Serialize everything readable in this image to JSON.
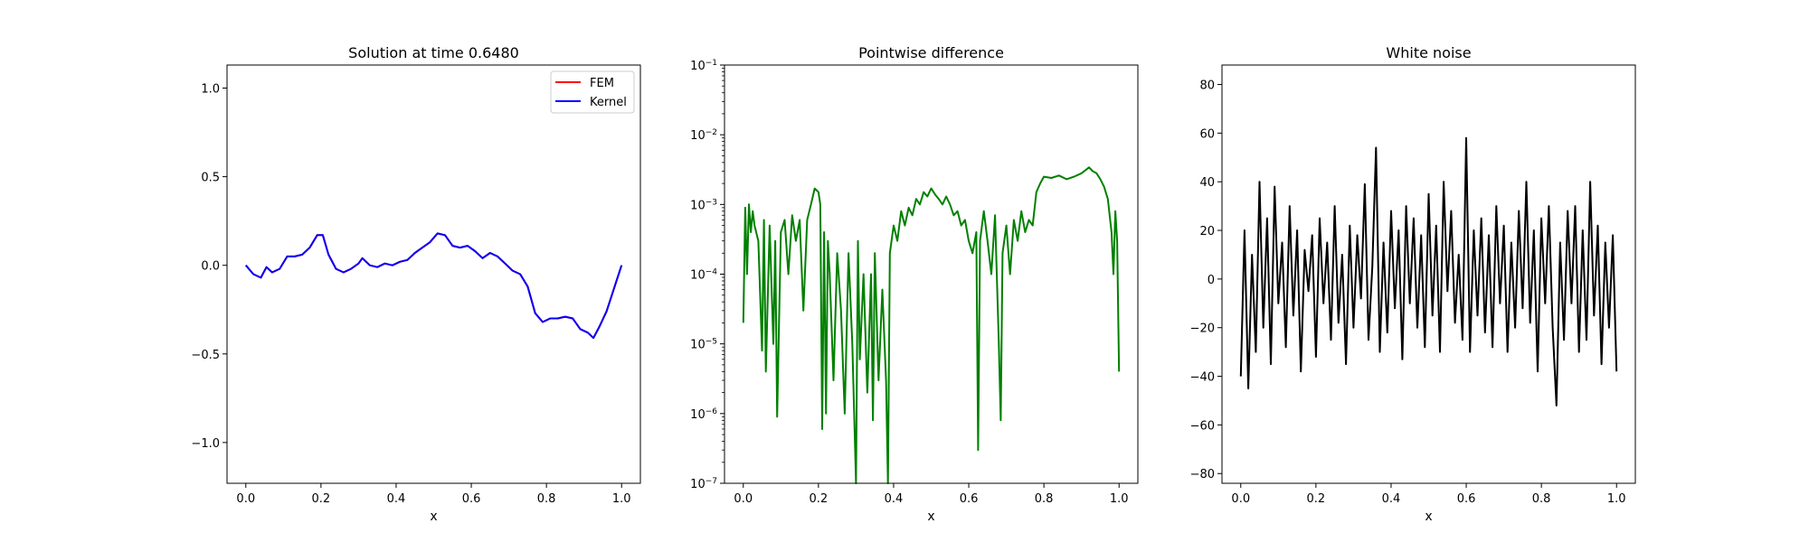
{
  "chart_data": [
    {
      "type": "line",
      "title": "Solution at time 0.6480",
      "xlabel": "x",
      "ylabel": "",
      "xlim": [
        -0.05,
        1.05
      ],
      "ylim": [
        -1.23,
        1.13
      ],
      "xticks": [
        0.0,
        0.2,
        0.4,
        0.6,
        0.8,
        1.0
      ],
      "xtick_labels": [
        "0.0",
        "0.2",
        "0.4",
        "0.6",
        "0.8",
        "1.0"
      ],
      "yticks": [
        -1.0,
        -0.5,
        0.0,
        0.5,
        1.0
      ],
      "ytick_labels": [
        "−1.0",
        "−0.5",
        "0.0",
        "0.5",
        "1.0"
      ],
      "grid": false,
      "legend": "top-right",
      "series": [
        {
          "name": "FEM",
          "color": "#ff0000",
          "x": [
            0.0,
            0.02,
            0.04,
            0.055,
            0.07,
            0.09,
            0.11,
            0.13,
            0.15,
            0.17,
            0.19,
            0.205,
            0.22,
            0.24,
            0.26,
            0.28,
            0.3,
            0.31,
            0.33,
            0.35,
            0.37,
            0.39,
            0.41,
            0.43,
            0.45,
            0.47,
            0.49,
            0.51,
            0.53,
            0.55,
            0.57,
            0.59,
            0.61,
            0.63,
            0.65,
            0.67,
            0.69,
            0.71,
            0.73,
            0.75,
            0.77,
            0.79,
            0.81,
            0.83,
            0.85,
            0.87,
            0.89,
            0.91,
            0.925,
            0.94,
            0.96,
            0.98,
            1.0
          ],
          "y": [
            0.0,
            -0.05,
            -0.07,
            -0.01,
            -0.04,
            -0.02,
            0.05,
            0.05,
            0.06,
            0.1,
            0.17,
            0.17,
            0.06,
            -0.02,
            -0.04,
            -0.02,
            0.01,
            0.04,
            0.0,
            -0.01,
            0.01,
            0.0,
            0.02,
            0.03,
            0.07,
            0.1,
            0.13,
            0.18,
            0.17,
            0.11,
            0.1,
            0.11,
            0.08,
            0.04,
            0.07,
            0.05,
            0.01,
            -0.03,
            -0.05,
            -0.12,
            -0.27,
            -0.32,
            -0.3,
            -0.3,
            -0.29,
            -0.3,
            -0.36,
            -0.38,
            -0.41,
            -0.35,
            -0.26,
            -0.13,
            0.0
          ]
        },
        {
          "name": "Kernel",
          "color": "#0000ff",
          "x": [
            0.0,
            0.02,
            0.04,
            0.055,
            0.07,
            0.09,
            0.11,
            0.13,
            0.15,
            0.17,
            0.19,
            0.205,
            0.22,
            0.24,
            0.26,
            0.28,
            0.3,
            0.31,
            0.33,
            0.35,
            0.37,
            0.39,
            0.41,
            0.43,
            0.45,
            0.47,
            0.49,
            0.51,
            0.53,
            0.55,
            0.57,
            0.59,
            0.61,
            0.63,
            0.65,
            0.67,
            0.69,
            0.71,
            0.73,
            0.75,
            0.77,
            0.79,
            0.81,
            0.83,
            0.85,
            0.87,
            0.89,
            0.91,
            0.925,
            0.94,
            0.96,
            0.98,
            1.0
          ],
          "y": [
            0.0,
            -0.05,
            -0.07,
            -0.01,
            -0.04,
            -0.02,
            0.05,
            0.05,
            0.06,
            0.1,
            0.17,
            0.17,
            0.06,
            -0.02,
            -0.04,
            -0.02,
            0.01,
            0.04,
            0.0,
            -0.01,
            0.01,
            0.0,
            0.02,
            0.03,
            0.07,
            0.1,
            0.13,
            0.18,
            0.17,
            0.11,
            0.1,
            0.11,
            0.08,
            0.04,
            0.07,
            0.05,
            0.01,
            -0.03,
            -0.05,
            -0.12,
            -0.27,
            -0.32,
            -0.3,
            -0.3,
            -0.29,
            -0.3,
            -0.36,
            -0.38,
            -0.41,
            -0.35,
            -0.26,
            -0.13,
            0.0
          ]
        }
      ]
    },
    {
      "type": "line",
      "title": "Pointwise difference",
      "xlabel": "x",
      "ylabel": "",
      "log_y": true,
      "xlim": [
        -0.05,
        1.05
      ],
      "ylim": [
        1e-07,
        0.1
      ],
      "xticks": [
        0.0,
        0.2,
        0.4,
        0.6,
        0.8,
        1.0
      ],
      "xtick_labels": [
        "0.0",
        "0.2",
        "0.4",
        "0.6",
        "0.8",
        "1.0"
      ],
      "yticks": [
        1e-07,
        1e-06,
        1e-05,
        0.0001,
        0.001,
        0.01,
        0.1
      ],
      "ytick_base": "10",
      "ytick_exponents": [
        "−7",
        "−6",
        "−5",
        "−4",
        "−3",
        "−2",
        "−1"
      ],
      "grid": false,
      "series": [
        {
          "color": "#008000",
          "x": [
            0.0,
            0.005,
            0.01,
            0.015,
            0.02,
            0.025,
            0.03,
            0.04,
            0.05,
            0.055,
            0.06,
            0.07,
            0.08,
            0.085,
            0.09,
            0.1,
            0.11,
            0.12,
            0.13,
            0.14,
            0.15,
            0.16,
            0.17,
            0.18,
            0.19,
            0.2,
            0.205,
            0.21,
            0.215,
            0.22,
            0.225,
            0.23,
            0.24,
            0.25,
            0.26,
            0.27,
            0.28,
            0.29,
            0.3,
            0.305,
            0.31,
            0.32,
            0.33,
            0.34,
            0.345,
            0.35,
            0.36,
            0.37,
            0.38,
            0.385,
            0.39,
            0.4,
            0.41,
            0.42,
            0.43,
            0.44,
            0.45,
            0.46,
            0.47,
            0.48,
            0.49,
            0.5,
            0.51,
            0.52,
            0.53,
            0.54,
            0.55,
            0.56,
            0.57,
            0.58,
            0.59,
            0.6,
            0.61,
            0.62,
            0.625,
            0.63,
            0.64,
            0.65,
            0.66,
            0.67,
            0.68,
            0.685,
            0.69,
            0.7,
            0.71,
            0.72,
            0.73,
            0.74,
            0.75,
            0.76,
            0.77,
            0.78,
            0.79,
            0.8,
            0.82,
            0.84,
            0.86,
            0.88,
            0.9,
            0.92,
            0.93,
            0.94,
            0.95,
            0.96,
            0.97,
            0.98,
            0.985,
            0.99,
            0.995,
            1.0
          ],
          "y": [
            2e-05,
            0.0009,
            0.0001,
            0.001,
            0.0004,
            0.0008,
            0.0005,
            0.0003,
            8e-06,
            0.0006,
            4e-06,
            0.0005,
            1e-05,
            0.0003,
            9e-07,
            0.0004,
            0.0006,
            0.0001,
            0.0007,
            0.0003,
            0.0006,
            3e-05,
            0.0006,
            0.001,
            0.0017,
            0.0015,
            0.001,
            6e-07,
            0.0004,
            1e-06,
            0.0003,
            0.0001,
            3e-06,
            0.0002,
            3e-05,
            1e-06,
            0.0002,
            1e-05,
            1e-07,
            0.0003,
            6e-06,
            0.0001,
            2e-06,
            0.0001,
            8e-07,
            0.0002,
            3e-06,
            6e-05,
            3e-06,
            1e-07,
            0.0002,
            0.0005,
            0.0003,
            0.0008,
            0.0005,
            0.0009,
            0.0007,
            0.0012,
            0.001,
            0.0015,
            0.0013,
            0.0017,
            0.0014,
            0.0012,
            0.001,
            0.0013,
            0.001,
            0.0007,
            0.0008,
            0.0005,
            0.0006,
            0.0003,
            0.0002,
            0.0004,
            3e-07,
            0.0003,
            0.0008,
            0.0003,
            0.0001,
            0.0007,
            1e-05,
            8e-07,
            0.0002,
            0.0005,
            0.0001,
            0.0006,
            0.0003,
            0.0008,
            0.0004,
            0.0006,
            0.0005,
            0.0015,
            0.002,
            0.0025,
            0.0024,
            0.0026,
            0.0023,
            0.0025,
            0.0028,
            0.0034,
            0.003,
            0.0028,
            0.0023,
            0.0018,
            0.0012,
            0.0004,
            0.0001,
            0.0008,
            0.0003,
            4e-06
          ]
        }
      ]
    },
    {
      "type": "line",
      "title": "White noise",
      "xlabel": "x",
      "ylabel": "",
      "xlim": [
        -0.05,
        1.05
      ],
      "ylim": [
        -84,
        88
      ],
      "xticks": [
        0.0,
        0.2,
        0.4,
        0.6,
        0.8,
        1.0
      ],
      "xtick_labels": [
        "0.0",
        "0.2",
        "0.4",
        "0.6",
        "0.8",
        "1.0"
      ],
      "yticks": [
        -80,
        -60,
        -40,
        -20,
        0,
        20,
        40,
        60,
        80
      ],
      "ytick_labels": [
        "−80",
        "−60",
        "−40",
        "−20",
        "0",
        "20",
        "40",
        "60",
        "80"
      ],
      "grid": false,
      "series": [
        {
          "color": "#000000",
          "x": [
            0.0,
            0.01,
            0.02,
            0.03,
            0.04,
            0.05,
            0.06,
            0.07,
            0.08,
            0.09,
            0.1,
            0.11,
            0.12,
            0.13,
            0.14,
            0.15,
            0.16,
            0.17,
            0.18,
            0.19,
            0.2,
            0.21,
            0.22,
            0.23,
            0.24,
            0.25,
            0.26,
            0.27,
            0.28,
            0.29,
            0.3,
            0.31,
            0.32,
            0.33,
            0.34,
            0.35,
            0.36,
            0.37,
            0.38,
            0.39,
            0.4,
            0.41,
            0.42,
            0.43,
            0.44,
            0.45,
            0.46,
            0.47,
            0.48,
            0.49,
            0.5,
            0.51,
            0.52,
            0.53,
            0.54,
            0.55,
            0.56,
            0.57,
            0.58,
            0.59,
            0.6,
            0.61,
            0.62,
            0.63,
            0.64,
            0.65,
            0.66,
            0.67,
            0.68,
            0.69,
            0.7,
            0.71,
            0.72,
            0.73,
            0.74,
            0.75,
            0.76,
            0.77,
            0.78,
            0.79,
            0.8,
            0.81,
            0.82,
            0.83,
            0.84,
            0.85,
            0.86,
            0.87,
            0.88,
            0.89,
            0.9,
            0.91,
            0.92,
            0.93,
            0.94,
            0.95,
            0.96,
            0.97,
            0.98,
            0.99,
            1.0
          ],
          "y": [
            -40,
            20,
            -45,
            10,
            -30,
            40,
            -20,
            25,
            -35,
            38,
            -10,
            15,
            -28,
            30,
            -15,
            20,
            -38,
            12,
            -5,
            18,
            -32,
            25,
            -10,
            15,
            -25,
            30,
            -18,
            10,
            -35,
            22,
            -20,
            18,
            -8,
            39,
            -25,
            5,
            54,
            -30,
            15,
            -22,
            28,
            -12,
            20,
            -33,
            30,
            -10,
            25,
            -20,
            18,
            -28,
            35,
            -15,
            22,
            -30,
            40,
            -5,
            28,
            -18,
            10,
            -25,
            58,
            -30,
            20,
            -15,
            25,
            -22,
            18,
            -28,
            30,
            -10,
            22,
            -30,
            15,
            -20,
            28,
            -12,
            40,
            -18,
            20,
            -38,
            25,
            -10,
            30,
            -20,
            -52,
            15,
            -25,
            28,
            -10,
            30,
            -30,
            20,
            -25,
            40,
            -15,
            22,
            -35,
            15,
            -20,
            18,
            -38
          ]
        }
      ]
    }
  ]
}
